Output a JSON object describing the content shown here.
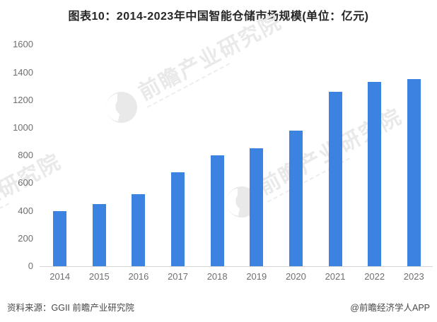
{
  "title": "图表10：2014-2023年中国智能仓储市场规模(单位：亿元)",
  "chart_data": {
    "type": "bar",
    "title": "图表10：2014-2023年中国智能仓储市场规模(单位：亿元)",
    "unit": "亿元",
    "categories": [
      "2014",
      "2015",
      "2016",
      "2017",
      "2018",
      "2019",
      "2020",
      "2021",
      "2022",
      "2023"
    ],
    "values": [
      400,
      450,
      520,
      680,
      800,
      850,
      980,
      1260,
      1330,
      1350
    ],
    "xlabel": "",
    "ylabel": "",
    "ylim": [
      0,
      1600
    ],
    "ytick_step": 200,
    "grid": false,
    "legend": "none",
    "bar_color": "#3b82e1",
    "axis_line_color": "#d6d6d6",
    "tick_label_color": "#6f6f6f"
  },
  "footer": {
    "source": "资料来源：GGII 前瞻产业研究院",
    "credit": "@前瞻经济学人APP"
  },
  "watermark": {
    "text": "前瞻产业研究院",
    "logo_icon": "qianzhan-bird-icon",
    "color": "#e9e9e9"
  }
}
